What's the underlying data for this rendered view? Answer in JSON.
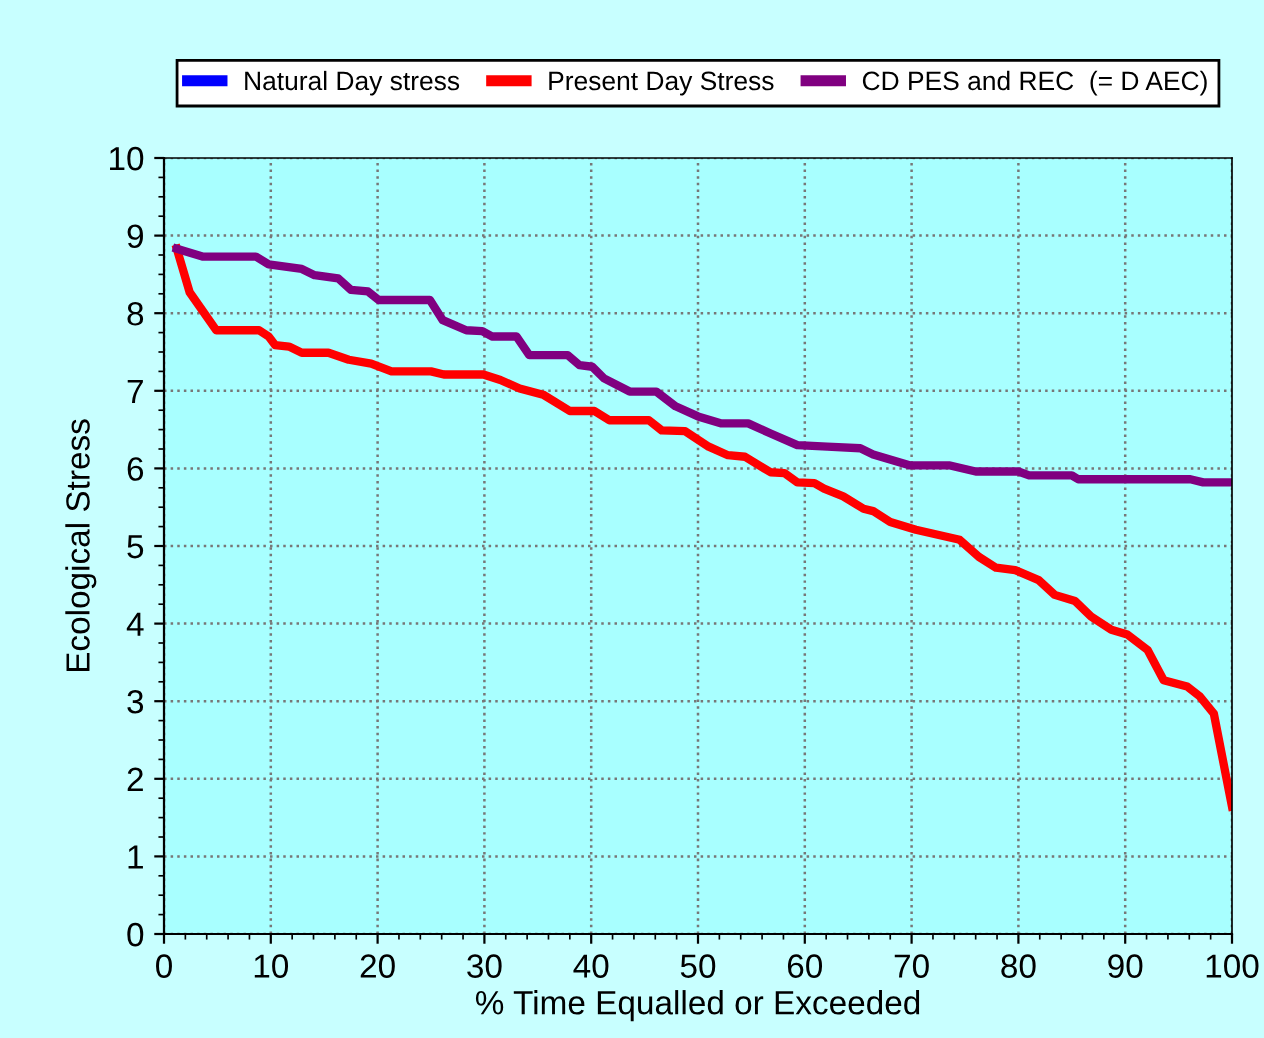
{
  "chart_data": {
    "type": "line",
    "xlabel": "% Time Equalled or Exceeded",
    "ylabel": "Ecological Stress",
    "xlim": [
      0,
      100
    ],
    "ylim": [
      0,
      10
    ],
    "xticks": [
      0,
      10,
      20,
      30,
      40,
      50,
      60,
      70,
      80,
      90,
      100
    ],
    "yticks": [
      0,
      1,
      2,
      3,
      4,
      5,
      6,
      7,
      8,
      9,
      10
    ],
    "grid": true,
    "legend": "top",
    "line_style": "solid",
    "marker": "none",
    "series": [
      {
        "name": "Natural Day stress",
        "color": "#0000ff"
      },
      {
        "name": "Present Day Stress",
        "color": "#ff0000",
        "x": [
          1.2,
          2.4,
          4.9,
          8.9,
          9.8,
          10.4,
          11.7,
          12.9,
          15.4,
          17.3,
          19.4,
          21.3,
          25.0,
          26.2,
          29.9,
          31.5,
          33.3,
          35.5,
          38.0,
          40.3,
          41.7,
          45.4,
          46.6,
          48.8,
          51.0,
          52.8,
          54.4,
          56.8,
          58.1,
          59.3,
          60.9,
          61.8,
          63.6,
          65.5,
          66.4,
          68.0,
          70.4,
          74.5,
          76.3,
          77.9,
          79.7,
          81.9,
          83.4,
          85.3,
          86.8,
          88.7,
          90.2,
          92.1,
          93.6,
          95.8,
          97.0,
          98.3,
          100
        ],
        "values": [
          8.83,
          8.27,
          7.78,
          7.78,
          7.7,
          7.59,
          7.57,
          7.49,
          7.49,
          7.4,
          7.35,
          7.25,
          7.25,
          7.21,
          7.21,
          7.14,
          7.03,
          6.95,
          6.74,
          6.74,
          6.62,
          6.62,
          6.49,
          6.48,
          6.28,
          6.17,
          6.15,
          5.95,
          5.94,
          5.82,
          5.81,
          5.74,
          5.64,
          5.48,
          5.45,
          5.31,
          5.21,
          5.08,
          4.86,
          4.72,
          4.69,
          4.56,
          4.37,
          4.29,
          4.09,
          3.92,
          3.86,
          3.66,
          3.27,
          3.19,
          3.06,
          2.84,
          1.64
        ]
      },
      {
        "name": "CD PES and REC  (= D AEC)",
        "color": "#800080",
        "x": [
          1.2,
          3.6,
          8.6,
          9.8,
          12.9,
          14.1,
          16.3,
          17.5,
          19.1,
          20.1,
          24.9,
          26.1,
          28.3,
          29.8,
          30.7,
          33.0,
          34.2,
          37.8,
          38.9,
          40.1,
          41.2,
          43.6,
          46.1,
          47.9,
          50.0,
          52.2,
          54.7,
          56.8,
          59.3,
          62.1,
          65.2,
          66.4,
          69.8,
          73.5,
          76.0,
          80.0,
          81.0,
          85.0,
          85.6,
          96.1,
          97.3,
          100
        ],
        "values": [
          8.83,
          8.73,
          8.73,
          8.63,
          8.57,
          8.49,
          8.45,
          8.3,
          8.28,
          8.17,
          8.17,
          7.91,
          7.78,
          7.77,
          7.7,
          7.7,
          7.46,
          7.46,
          7.33,
          7.31,
          7.16,
          6.99,
          6.99,
          6.8,
          6.67,
          6.58,
          6.58,
          6.45,
          6.3,
          6.28,
          6.26,
          6.18,
          6.04,
          6.04,
          5.96,
          5.96,
          5.91,
          5.91,
          5.86,
          5.86,
          5.82,
          5.82
        ]
      }
    ]
  }
}
